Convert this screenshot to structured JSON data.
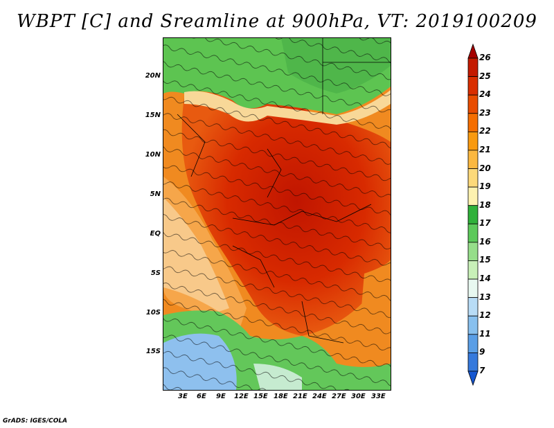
{
  "title": "WBPT [C] and Sreamline at 900hPa, VT: 2019100209",
  "footer": "GrADS: IGES/COLA",
  "map": {
    "lat_labels": [
      "20N",
      "15N",
      "10N",
      "5N",
      "EQ",
      "5S",
      "10S",
      "15S"
    ],
    "lon_labels": [
      "3E",
      "6E",
      "9E",
      "12E",
      "15E",
      "18E",
      "21E",
      "24E",
      "27E",
      "30E",
      "33E"
    ]
  },
  "colorbar": {
    "labels": [
      "26",
      "25",
      "24",
      "23",
      "22",
      "21",
      "20",
      "19",
      "18",
      "17",
      "16",
      "15",
      "14",
      "13",
      "12",
      "11",
      "9",
      "7"
    ],
    "colors": [
      "#a50000",
      "#c41a00",
      "#d92e00",
      "#e84c00",
      "#f56e00",
      "#f99a10",
      "#fbb840",
      "#fcd97a",
      "#fdf2b0",
      "#2fb13a",
      "#5cc95a",
      "#96de8a",
      "#c8f0b8",
      "#e8f8f0",
      "#b8dcf6",
      "#88c0ee",
      "#5a9ee6",
      "#3679dc",
      "#1556d0"
    ]
  },
  "colors": {
    "hot": "#c41a00",
    "warm": "#f07a10",
    "tan": "#f7c77a",
    "green": "#58c24f",
    "blue": "#8fc2ee"
  }
}
